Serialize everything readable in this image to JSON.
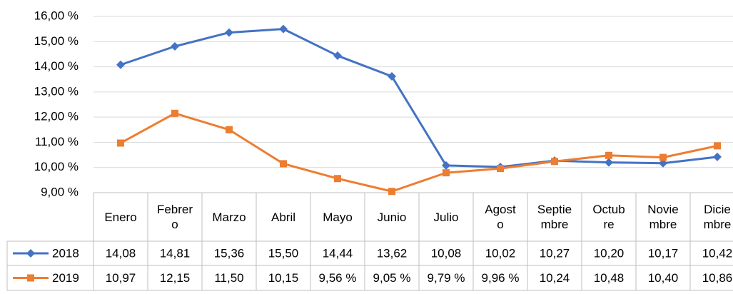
{
  "chart_data": {
    "type": "line",
    "categories": [
      "Enero",
      "Febrero",
      "Marzo",
      "Abril",
      "Mayo",
      "Junio",
      "Julio",
      "Agosto",
      "Septiembre",
      "Octubre",
      "Noviembre",
      "Diciembre"
    ],
    "series": [
      {
        "name": "2018",
        "color": "#4472c4",
        "marker": "diamond",
        "values": [
          14.08,
          14.81,
          15.36,
          15.5,
          14.44,
          13.62,
          10.08,
          10.02,
          10.27,
          10.2,
          10.17,
          10.42
        ],
        "value_labels": [
          "14,08",
          "14,81",
          "15,36",
          "15,50",
          "14,44",
          "13,62",
          "10,08",
          "10,02",
          "10,27",
          "10,20",
          "10,17",
          "10,42"
        ]
      },
      {
        "name": "2019",
        "color": "#ed7d31",
        "marker": "square",
        "values": [
          10.97,
          12.15,
          11.5,
          10.15,
          9.56,
          9.05,
          9.79,
          9.96,
          10.24,
          10.48,
          10.4,
          10.86
        ],
        "value_labels": [
          "10,97",
          "12,15",
          "11,50",
          "10,15",
          "9,56 %",
          "9,05 %",
          "9,79 %",
          "9,96 %",
          "10,24",
          "10,48",
          "10,40",
          "10,86"
        ]
      }
    ],
    "ylim": [
      9,
      16
    ],
    "yticks": [
      {
        "value": 9,
        "label": "9,00 %"
      },
      {
        "value": 10,
        "label": "10,00 %"
      },
      {
        "value": 11,
        "label": "11,00 %"
      },
      {
        "value": 12,
        "label": "12,00 %"
      },
      {
        "value": 13,
        "label": "13,00 %"
      },
      {
        "value": 14,
        "label": "14,00 %"
      },
      {
        "value": 15,
        "label": "15,00 %"
      },
      {
        "value": 16,
        "label": "16,00 %"
      }
    ],
    "grid": true,
    "data_table": true
  }
}
